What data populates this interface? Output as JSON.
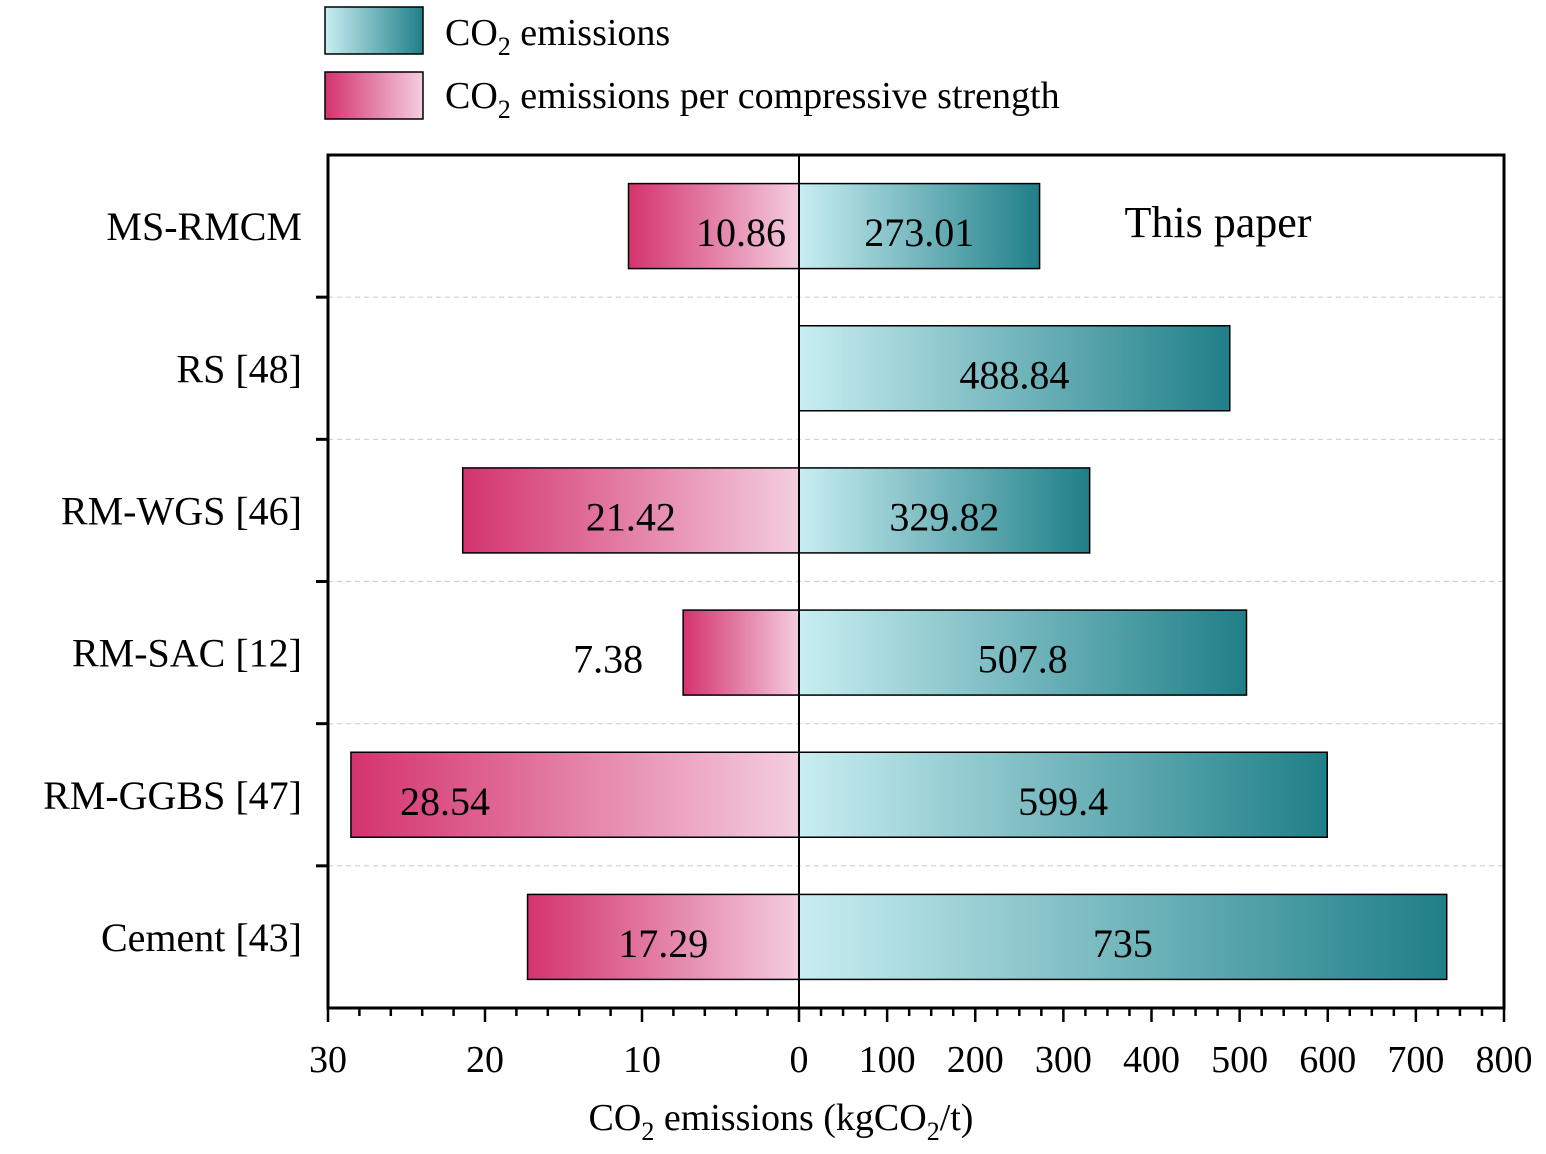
{
  "chart_data": {
    "type": "bar",
    "orientation": "horizontal-diverging",
    "categories": [
      "MS-RMCM",
      "RS [48]",
      "RM-WGS [46]",
      "RM-SAC [12]",
      "RM-GGBS [47]",
      "Cement [43]"
    ],
    "series": [
      {
        "name": "CO2 emissions",
        "legend": {
          "pre": "CO",
          "sub": "2",
          "post": " emissions"
        },
        "side": "right",
        "values": [
          273.01,
          488.84,
          329.82,
          507.8,
          599.4,
          735
        ],
        "value_labels": [
          "273.01",
          "488.84",
          "329.82",
          "507.8",
          "599.4",
          "735"
        ],
        "color_light": "#c8eef2",
        "color_dark": "#1f7f88"
      },
      {
        "name": "CO2 emissions per compressive strength",
        "legend": {
          "pre": "CO",
          "sub": "2",
          "post": " emissions per compressive strength"
        },
        "side": "left",
        "values": [
          10.86,
          null,
          21.42,
          7.38,
          28.54,
          17.29
        ],
        "value_labels": [
          "10.86",
          "",
          "21.42",
          "7.38",
          "28.54",
          "17.29"
        ],
        "color_light": "#f4cde0",
        "color_dark": "#d4336e"
      }
    ],
    "left_axis": {
      "range": [
        0,
        30
      ],
      "ticks": [
        "30",
        "20",
        "10",
        "0"
      ],
      "tick_values": [
        30,
        20,
        10,
        0
      ]
    },
    "right_axis": {
      "range": [
        0,
        800
      ],
      "ticks": [
        "100",
        "200",
        "300",
        "400",
        "500",
        "600",
        "700",
        "800"
      ],
      "tick_values": [
        100,
        200,
        300,
        400,
        500,
        600,
        700,
        800
      ]
    },
    "xlabel": {
      "pre": "CO",
      "sub1": "2",
      "mid": " emissions (kgCO",
      "sub2": "2",
      "post": "/t)"
    },
    "annotation": "This paper",
    "grid": "horizontal dashed separators",
    "legend_position": "top-center"
  }
}
